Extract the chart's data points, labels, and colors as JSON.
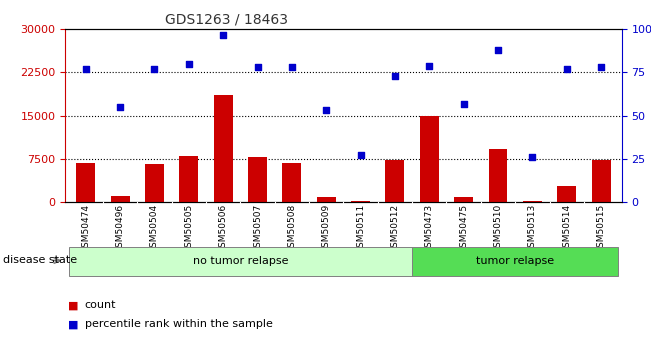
{
  "title": "GDS1263 / 18463",
  "samples": [
    "GSM50474",
    "GSM50496",
    "GSM50504",
    "GSM50505",
    "GSM50506",
    "GSM50507",
    "GSM50508",
    "GSM50509",
    "GSM50511",
    "GSM50512",
    "GSM50473",
    "GSM50475",
    "GSM50510",
    "GSM50513",
    "GSM50514",
    "GSM50515"
  ],
  "counts": [
    6800,
    1000,
    6500,
    8000,
    18500,
    7800,
    6800,
    900,
    200,
    7200,
    15000,
    900,
    9200,
    100,
    2800,
    7200
  ],
  "percentiles": [
    77,
    55,
    77,
    80,
    97,
    78,
    78,
    53,
    27,
    73,
    79,
    57,
    88,
    26,
    77,
    78
  ],
  "no_relapse_count": 10,
  "tumor_relapse_count": 6,
  "ylim_left": [
    0,
    30000
  ],
  "ylim_right": [
    0,
    100
  ],
  "yticks_left": [
    0,
    7500,
    15000,
    22500,
    30000
  ],
  "yticks_right": [
    0,
    25,
    50,
    75,
    100
  ],
  "bar_color": "#cc0000",
  "dot_color": "#0000cc",
  "no_relapse_color": "#ccffcc",
  "tumor_relapse_color": "#55dd55",
  "label_bg_color": "#cccccc",
  "title_color": "#333333",
  "left_axis_color": "#cc0000",
  "right_axis_color": "#0000cc",
  "disease_state_label": "disease state",
  "no_relapse_label": "no tumor relapse",
  "tumor_relapse_label": "tumor relapse",
  "legend_count_label": "count",
  "legend_percentile_label": "percentile rank within the sample"
}
